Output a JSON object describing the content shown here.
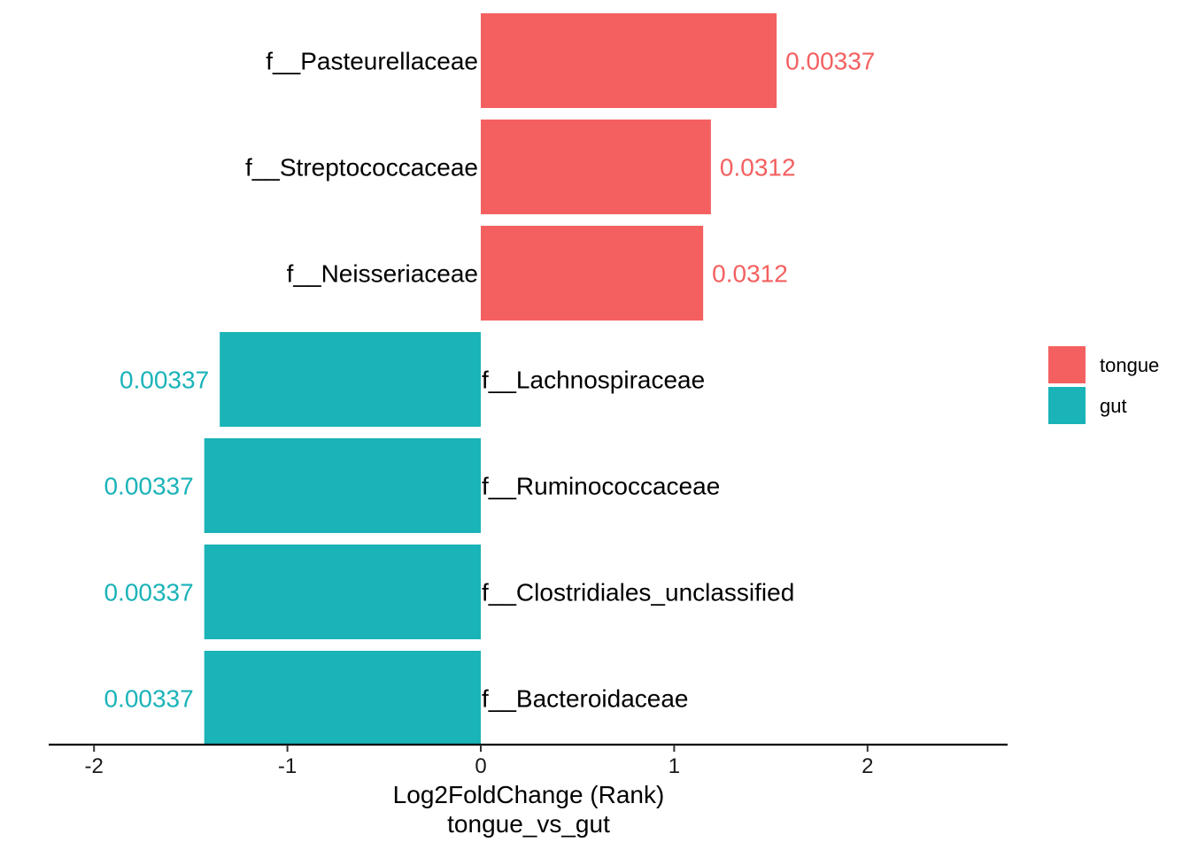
{
  "chart_data": {
    "type": "bar",
    "orientation": "horizontal",
    "xlabel": "Log2FoldChange (Rank)",
    "xlabel_sub": "tongue_vs_gut",
    "ylabel": "",
    "xlim": [
      -2.2,
      2.7
    ],
    "xticks": [
      -2,
      -1,
      0,
      1,
      2
    ],
    "grid": false,
    "legend_position": "right",
    "series": [
      {
        "name": "tongue",
        "color": "#F46060"
      },
      {
        "name": "gut",
        "color": "#1AB3B8"
      }
    ],
    "bars": [
      {
        "category": "f__Pasteurellaceae",
        "value": 1.53,
        "group": "tongue",
        "label": "0.00337"
      },
      {
        "category": "f__Streptococcaceae",
        "value": 1.19,
        "group": "tongue",
        "label": "0.0312"
      },
      {
        "category": "f__Neisseriaceae",
        "value": 1.15,
        "group": "tongue",
        "label": "0.0312"
      },
      {
        "category": "f__Lachnospiraceae",
        "value": -1.35,
        "group": "gut",
        "label": "0.00337"
      },
      {
        "category": "f__Ruminococcaceae",
        "value": -1.43,
        "group": "gut",
        "label": "0.00337"
      },
      {
        "category": "f__Clostridiales_unclassified",
        "value": -1.43,
        "group": "gut",
        "label": "0.00337"
      },
      {
        "category": "f__Bacteroidaceae",
        "value": -1.43,
        "group": "gut",
        "label": "0.00337"
      }
    ]
  }
}
